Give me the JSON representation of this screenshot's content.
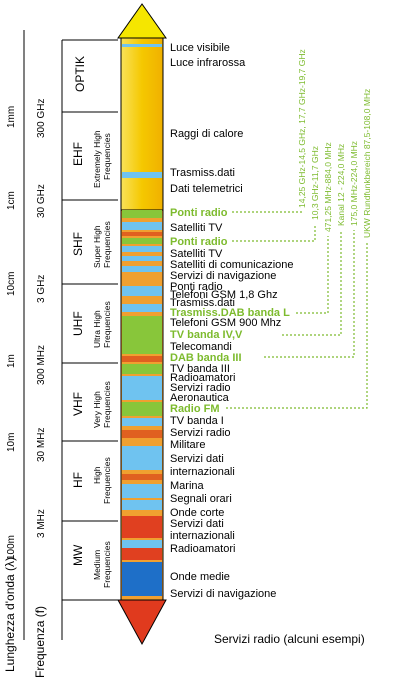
{
  "axes": {
    "wavelength_title": "Lunghezza d'onda (λ)",
    "frequency_title": "Frequenza (f)",
    "wavelength_ticks": [
      "1mm",
      "1cm",
      "10cm",
      "1m",
      "10m",
      "100m"
    ],
    "frequency_ticks": [
      "300 GHz",
      "30 GHz",
      "3 GHz",
      "300 MHz",
      "30 MHz",
      "3 MHz"
    ]
  },
  "bands": [
    {
      "name": "OPTIK",
      "desc1": "",
      "desc2": ""
    },
    {
      "name": "EHF",
      "desc1": "Extremely High",
      "desc2": "Frequencies"
    },
    {
      "name": "SHF",
      "desc1": "Super High",
      "desc2": "Frequencies"
    },
    {
      "name": "UHF",
      "desc1": "Ultra High",
      "desc2": "Frequencies"
    },
    {
      "name": "VHF",
      "desc1": "Very High",
      "desc2": "Frequencies"
    },
    {
      "name": "HF",
      "desc1": "High",
      "desc2": "Frequencies"
    },
    {
      "name": "MW",
      "desc1": "Medium",
      "desc2": "Frequencies"
    }
  ],
  "services": [
    {
      "text": "Luce visibile",
      "highlight": false
    },
    {
      "text": "Luce infrarossa",
      "highlight": false
    },
    {
      "text": "Raggi di calore",
      "highlight": false
    },
    {
      "text": "Trasmiss.dati",
      "highlight": false
    },
    {
      "text": "Dati telemetrici",
      "highlight": false
    },
    {
      "text": "Ponti radio",
      "highlight": true
    },
    {
      "text": "Satelliti TV",
      "highlight": false
    },
    {
      "text": "Ponti radio",
      "highlight": true
    },
    {
      "text": "Satelliti TV",
      "highlight": false
    },
    {
      "text": "Satelliti di comunicazione",
      "highlight": false
    },
    {
      "text": "Servizi di navigazione",
      "highlight": false
    },
    {
      "text": "Ponti radio",
      "highlight": false
    },
    {
      "text": "Telefoni GSM 1,8 Ghz",
      "highlight": false
    },
    {
      "text": "Trasmiss.dati",
      "highlight": false
    },
    {
      "text": "Trasmiss.DAB banda L",
      "highlight": true
    },
    {
      "text": "Telefoni GSM 900 Mhz",
      "highlight": false
    },
    {
      "text": "TV banda IV,V",
      "highlight": true
    },
    {
      "text": "Telecomandi",
      "highlight": false
    },
    {
      "text": "DAB banda III",
      "highlight": true
    },
    {
      "text": "TV banda III",
      "highlight": false
    },
    {
      "text": "Radioamatori",
      "highlight": false
    },
    {
      "text": "Servizi radio",
      "highlight": false
    },
    {
      "text": "Aeronautica",
      "highlight": false
    },
    {
      "text": "Radio FM",
      "highlight": true
    },
    {
      "text": "TV banda I",
      "highlight": false
    },
    {
      "text": "Servizi radio",
      "highlight": false
    },
    {
      "text": "Militare",
      "highlight": false
    },
    {
      "text": "Servizi dati",
      "highlight": false
    },
    {
      "text": "internazionali",
      "highlight": false
    },
    {
      "text": "Marina",
      "highlight": false
    },
    {
      "text": "Segnali orari",
      "highlight": false
    },
    {
      "text": "Onde corte",
      "highlight": false
    },
    {
      "text": "Servizi dati",
      "highlight": false
    },
    {
      "text": "internazionali",
      "highlight": false
    },
    {
      "text": "Radioamatori",
      "highlight": false
    },
    {
      "text": "Onde medie",
      "highlight": false
    },
    {
      "text": "Servizi di navigazione",
      "highlight": false
    }
  ],
  "frequency_notes": [
    "14,25 GHz-14,5 GHz, 17,7 GHz-19,7 GHz",
    "10,3 GHz-11,7 GHz",
    "471,25 MHz-884,0 MHz",
    "Kanal 12 - 224,0 MHz",
    "175,0 MHz-224,0 MHz",
    "UKW Rundfunkbereich 87,5-108,0 MHz"
  ],
  "footer": "Servizi radio (alcuni esempi)",
  "colors": {
    "highlight_green": "#7dbb2e",
    "band_yellow": "#f7cf0a",
    "band_orange": "#f0a030",
    "band_blue": "#6fc3f0",
    "band_green": "#88c63a",
    "band_red": "#e03a1e"
  }
}
